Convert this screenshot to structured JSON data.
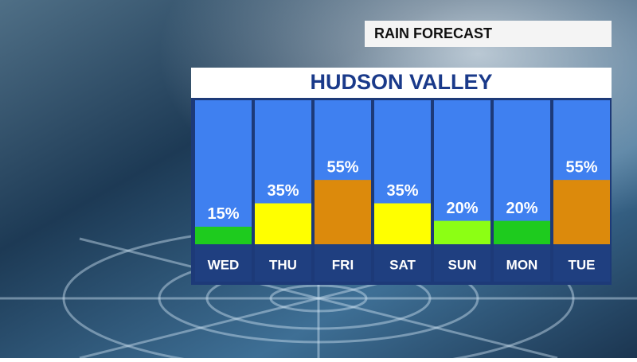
{
  "header": {
    "label": "RAIN FORECAST"
  },
  "chart_data": {
    "type": "bar",
    "title": "HUDSON VALLEY",
    "categories": [
      "WED",
      "THU",
      "FRI",
      "SAT",
      "SUN",
      "MON",
      "TUE"
    ],
    "values": [
      15,
      35,
      55,
      35,
      20,
      20,
      55
    ],
    "value_labels": [
      "15%",
      "35%",
      "55%",
      "35%",
      "20%",
      "20%",
      "55%"
    ],
    "colors": [
      "#1ecb1e",
      "#ffff00",
      "#dc8a0c",
      "#ffff00",
      "#8cff14",
      "#1ecb1e",
      "#dc8a0c"
    ]
  }
}
